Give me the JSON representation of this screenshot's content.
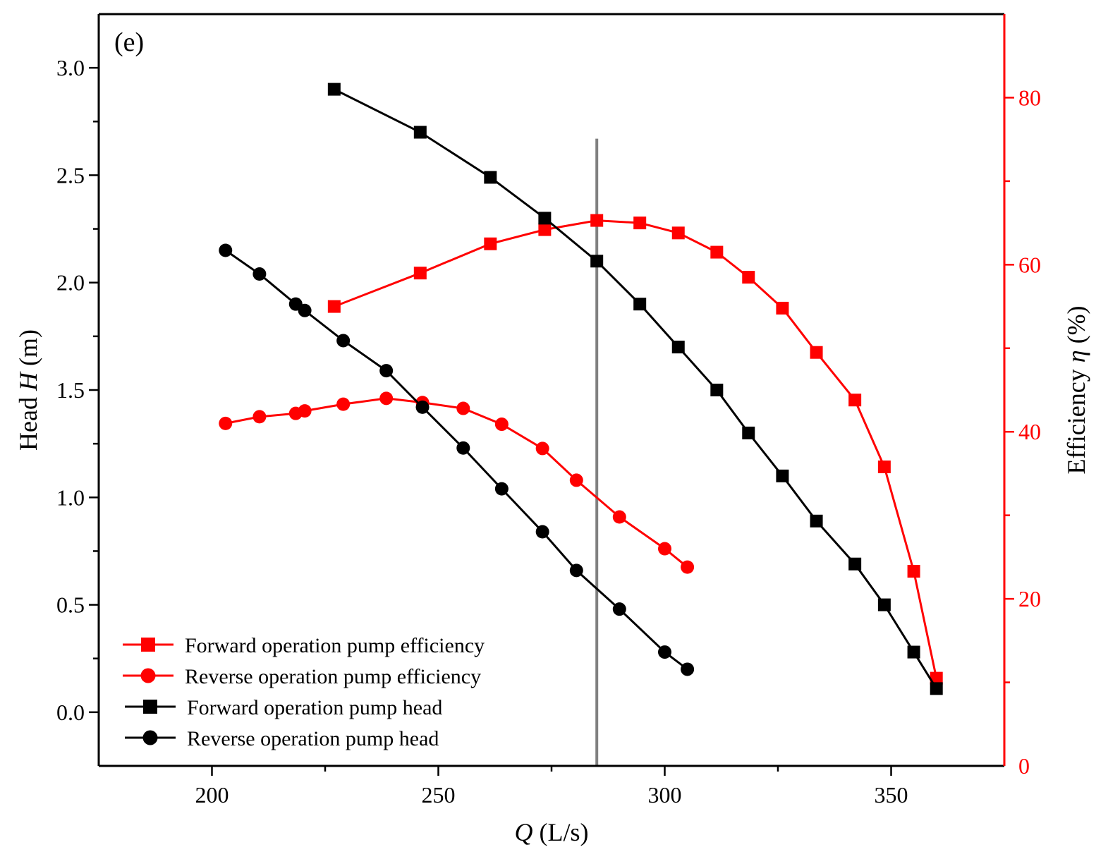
{
  "chart_data": {
    "type": "line",
    "panel_label": "(e)",
    "x_axis": {
      "label_italic": "Q",
      "label_rest": " (L/s)",
      "range": [
        175,
        375
      ],
      "ticks": [
        200,
        250,
        300,
        350
      ],
      "minor_step": 25
    },
    "y_left": {
      "label_prefix": "Head ",
      "label_italic": "H",
      "label_suffix": " (m)",
      "range": [
        -0.25,
        3.25
      ],
      "ticks": [
        0.0,
        0.5,
        1.0,
        1.5,
        2.0,
        2.5,
        3.0
      ],
      "tick_labels": [
        "0.0",
        "0.5",
        "1.0",
        "1.5",
        "2.0",
        "2.5",
        "3.0"
      ],
      "minor_step": 0.25
    },
    "y_right": {
      "label_prefix": "Efficiency ",
      "label_italic": "η",
      "label_suffix": " (%)",
      "range": [
        0,
        90
      ],
      "ticks": [
        0,
        20,
        40,
        60,
        80
      ],
      "tick_labels": [
        "0",
        "20",
        "40",
        "60",
        "80"
      ],
      "minor_step": 10,
      "color": "#ff0000"
    },
    "reference_line": {
      "x": 285,
      "y_top": 2.67,
      "color": "#808080"
    },
    "series": [
      {
        "name": "Forward operation pump efficiency",
        "axis": "right",
        "marker": "square",
        "color": "#ff0000",
        "x": [
          227,
          246,
          261.5,
          273.5,
          285,
          294.5,
          303,
          311.5,
          318.5,
          326,
          333.5,
          342,
          348.5,
          355,
          360
        ],
        "y": [
          55,
          59,
          62.5,
          64.2,
          65.3,
          65,
          63.8,
          61.5,
          58.5,
          54.8,
          49.5,
          43.8,
          35.8,
          23.3,
          10.5
        ]
      },
      {
        "name": "Reverse operation pump efficiency",
        "axis": "right",
        "marker": "circle",
        "color": "#ff0000",
        "x": [
          203,
          210.5,
          218.5,
          220.5,
          229,
          238.5,
          246.5,
          255.5,
          264,
          273,
          280.5,
          290,
          300,
          305
        ],
        "y": [
          41,
          41.8,
          42.2,
          42.5,
          43.3,
          44,
          43.5,
          42.8,
          40.9,
          38,
          34.2,
          29.8,
          26,
          23.8
        ]
      },
      {
        "name": "Forward operation pump head",
        "axis": "left",
        "marker": "square",
        "color": "#000000",
        "x": [
          227,
          246,
          261.5,
          273.5,
          285,
          294.5,
          303,
          311.5,
          318.5,
          326,
          333.5,
          342,
          348.5,
          355,
          360
        ],
        "y": [
          2.9,
          2.7,
          2.49,
          2.3,
          2.1,
          1.9,
          1.7,
          1.5,
          1.3,
          1.1,
          0.89,
          0.69,
          0.5,
          0.28,
          0.11
        ]
      },
      {
        "name": "Reverse operation pump head",
        "axis": "left",
        "marker": "circle",
        "color": "#000000",
        "x": [
          203,
          210.5,
          218.5,
          220.5,
          229,
          238.5,
          246.5,
          255.5,
          264,
          273,
          280.5,
          290,
          300,
          305
        ],
        "y": [
          2.15,
          2.04,
          1.9,
          1.87,
          1.73,
          1.59,
          1.42,
          1.23,
          1.04,
          0.84,
          0.66,
          0.48,
          0.28,
          0.2
        ]
      }
    ]
  }
}
